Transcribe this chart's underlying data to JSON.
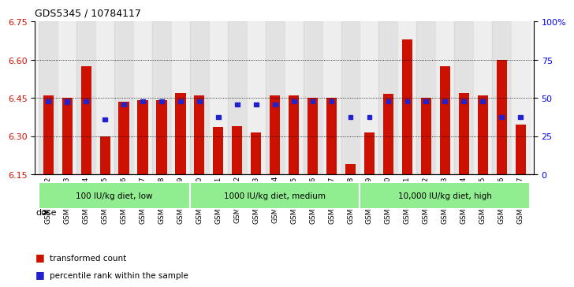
{
  "title": "GDS5345 / 10784117",
  "samples": [
    "GSM1502412",
    "GSM1502413",
    "GSM1502414",
    "GSM1502415",
    "GSM1502416",
    "GSM1502417",
    "GSM1502418",
    "GSM1502419",
    "GSM1502420",
    "GSM1502421",
    "GSM1502422",
    "GSM1502423",
    "GSM1502424",
    "GSM1502425",
    "GSM1502426",
    "GSM1502427",
    "GSM1502428",
    "GSM1502429",
    "GSM1502430",
    "GSM1502431",
    "GSM1502432",
    "GSM1502433",
    "GSM1502434",
    "GSM1502435",
    "GSM1502436",
    "GSM1502437"
  ],
  "red_values": [
    6.46,
    6.45,
    6.575,
    6.3,
    6.435,
    6.44,
    6.44,
    6.47,
    6.46,
    6.335,
    6.34,
    6.315,
    6.46,
    6.46,
    6.45,
    6.45,
    6.19,
    6.315,
    6.465,
    6.68,
    6.45,
    6.575,
    6.47,
    6.46,
    6.6,
    6.345
  ],
  "blue_values": [
    6.437,
    6.435,
    6.437,
    6.365,
    6.425,
    6.437,
    6.437,
    6.437,
    6.437,
    6.375,
    6.425,
    6.425,
    6.425,
    6.437,
    6.437,
    6.437,
    6.375,
    6.375,
    6.437,
    6.437,
    6.437,
    6.437,
    6.437,
    6.437,
    6.375,
    6.375
  ],
  "ylim_left": [
    6.15,
    6.75
  ],
  "ylim_right": [
    0,
    100
  ],
  "yticks_left": [
    6.15,
    6.3,
    6.45,
    6.6,
    6.75
  ],
  "yticks_right": [
    0,
    25,
    50,
    75,
    100
  ],
  "ytick_labels_right": [
    "0",
    "25",
    "50",
    "75",
    "100%"
  ],
  "groups": [
    {
      "label": "100 IU/kg diet, low",
      "start": 0,
      "end": 8
    },
    {
      "label": "1000 IU/kg diet, medium",
      "start": 8,
      "end": 17
    },
    {
      "label": "10,000 IU/kg diet, high",
      "start": 17,
      "end": 26
    }
  ],
  "group_color": "#90EE90",
  "bar_color_red": "#CC1100",
  "bar_color_blue": "#2222CC",
  "dose_label": "dose",
  "legend": [
    {
      "color": "#CC1100",
      "label": "transformed count"
    },
    {
      "color": "#2222CC",
      "label": "percentile rank within the sample"
    }
  ],
  "background_color": "#e8e8e8",
  "plot_bg": "#f5f5f5"
}
